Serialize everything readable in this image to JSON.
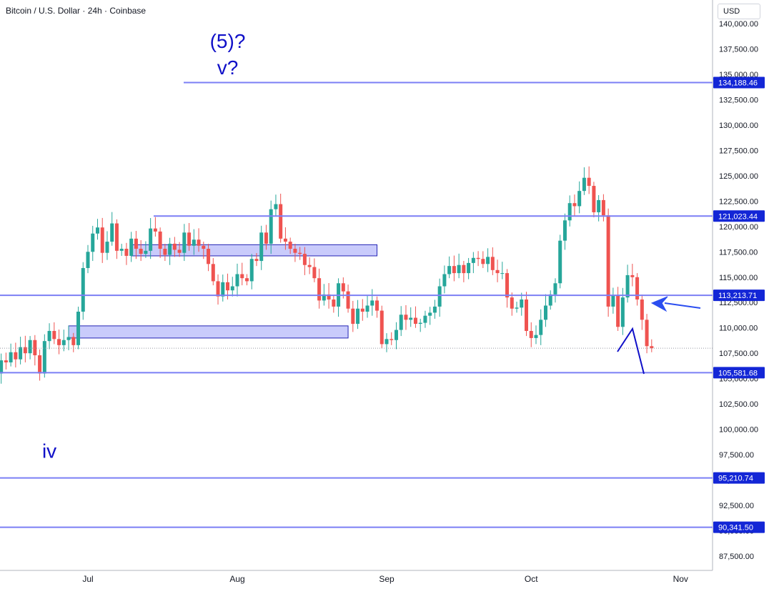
{
  "header": {
    "symbol_title": "Bitcoin / U.S. Dollar · 24h · Coinbase",
    "currency_button": "USD"
  },
  "colors": {
    "up": "#26a69a",
    "down": "#ef5350",
    "level_line": "#7b7ff5",
    "annotation": "#1010c8",
    "zone_fill": "#c9cbfb",
    "zone_border": "#2323b5",
    "arrow": "#2b4ef0",
    "price_tag": "#1326d6"
  },
  "chart_data": {
    "type": "candlestick",
    "y_axis": {
      "range": [
        86500,
        141000
      ],
      "ticks": [
        87500,
        90000,
        92500,
        95000,
        97500,
        100000,
        102500,
        105000,
        107500,
        110000,
        112500,
        115000,
        117500,
        120000,
        122500,
        125000,
        127500,
        130000,
        132500,
        135000,
        137500,
        140000
      ],
      "tick_labels": [
        "87,500.00",
        "90,000.00",
        "92,500.00",
        "95,000.00",
        "97,500.00",
        "100,000.00",
        "102,500.00",
        "105,000.00",
        "107,500.00",
        "110,000.00",
        "112,500.00",
        "115,000.00",
        "117,500.00",
        "120,000.00",
        "122,500.00",
        "125,000.00",
        "127,500.00",
        "130,000.00",
        "132,500.00",
        "135,000.00",
        "137,500.00",
        "140,000.00"
      ]
    },
    "x_axis": {
      "labels": [
        {
          "label": "Jul",
          "date": "2025-07-01"
        },
        {
          "label": "Aug",
          "date": "2025-08-01"
        },
        {
          "label": "Sep",
          "date": "2025-09-01"
        },
        {
          "label": "Oct",
          "date": "2025-10-01"
        },
        {
          "label": "Nov",
          "date": "2025-11-01"
        }
      ],
      "first_date": "2025-06-01",
      "last_date": "2025-11-10"
    },
    "close_values": [
      105700,
      105300,
      104800,
      106000,
      105200,
      104900,
      105600,
      104300,
      103600,
      101800,
      100900,
      105500,
      106800,
      106600,
      107600,
      106900,
      108100,
      107500,
      108800,
      107300,
      105500,
      108700,
      109700,
      108900,
      108300,
      108800,
      109100,
      108300,
      111600,
      115900,
      117500,
      119300,
      119900,
      117400,
      118500,
      120300,
      117600,
      117800,
      117100,
      118800,
      117800,
      117300,
      117600,
      119800,
      119500,
      117800,
      117200,
      118300,
      117700,
      117400,
      119400,
      118100,
      118700,
      118100,
      117800,
      116300,
      114600,
      113100,
      114500,
      113700,
      114100,
      115300,
      114900,
      114600,
      116800,
      116600,
      119400,
      118300,
      121700,
      122200,
      118800,
      118500,
      117800,
      117400,
      117300,
      116200,
      116000,
      114900,
      112700,
      113300,
      112800,
      112100,
      114400,
      113600,
      111900,
      110400,
      111900,
      111600,
      112200,
      112700,
      111700,
      108400,
      108900,
      108800,
      109800,
      111300,
      110800,
      111000,
      110400,
      110500,
      111200,
      111500,
      112100,
      114100,
      115300,
      116100,
      115400,
      116200,
      115400,
      116400,
      116900,
      116800,
      116300,
      117000,
      115700,
      115400,
      115400,
      113000,
      111900,
      112000,
      112800,
      109700,
      109000,
      109300,
      110800,
      112200,
      113300,
      114400,
      118600,
      120600,
      122300,
      122000,
      123500,
      124800,
      124000,
      121400,
      122600,
      121100,
      112100,
      113200,
      110100,
      113000,
      115200,
      115000,
      112800,
      110800,
      108200,
      108000
    ],
    "support_resistance_levels": [
      134188.46,
      121023.44,
      113213.71,
      105581.68,
      95210.74,
      90341.5
    ],
    "level_labels": [
      "134,188.46",
      "121,023.44",
      "113,213.71",
      "105,581.68",
      "95,210.74",
      "90,341.50"
    ],
    "zones": [
      {
        "from_date": "2025-07-10",
        "to_date": "2025-08-30",
        "low": 117100,
        "high": 118200
      },
      {
        "from_date": "2025-06-27",
        "to_date": "2025-08-24",
        "low": 109000,
        "high": 110200
      }
    ],
    "annotations": [
      {
        "text": "(5)?",
        "date": "2025-07-30",
        "price": 137600
      },
      {
        "text": "v?",
        "date": "2025-07-30",
        "price": 135000
      },
      {
        "text": "iv",
        "date": "2025-06-23",
        "price": 97200
      }
    ]
  }
}
